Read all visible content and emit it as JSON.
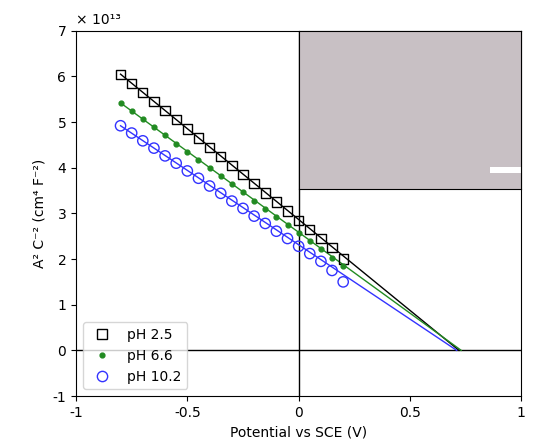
{
  "chart_data": {
    "type": "scatter",
    "x_label": "Potential vs SCE (V)",
    "y_label": "A² C⁻² (cm⁴ F⁻²)",
    "annotations": [
      "× 10¹³"
    ],
    "xlim": [
      -1,
      1
    ],
    "ylim": [
      -1,
      7
    ],
    "xticks": [
      -1,
      -0.5,
      0,
      0.5,
      1
    ],
    "yticks": [
      -1,
      0,
      1,
      2,
      3,
      4,
      5,
      6,
      7
    ],
    "grid": false,
    "legend": "lower left",
    "series": [
      {
        "name": "pH 2.5",
        "type": "scatter",
        "color": "#000000",
        "marker": "open_square",
        "x": [
          -0.8,
          -0.75,
          -0.7,
          -0.65,
          -0.6,
          -0.55,
          -0.5,
          -0.45,
          -0.4,
          -0.35,
          -0.3,
          -0.25,
          -0.2,
          -0.15,
          -0.1,
          -0.05,
          0,
          0.05,
          0.1,
          0.15,
          0.2
        ],
        "values": [
          6.05,
          5.85,
          5.65,
          5.45,
          5.25,
          5.05,
          4.85,
          4.65,
          4.45,
          4.25,
          4.05,
          3.85,
          3.65,
          3.45,
          3.25,
          3.05,
          2.85,
          2.65,
          2.45,
          2.25,
          2.0
        ]
      },
      {
        "name": "pH 6.6",
        "type": "scatter",
        "color": "#228b22",
        "marker": "dot",
        "x": [
          -0.8,
          -0.75,
          -0.7,
          -0.65,
          -0.6,
          -0.55,
          -0.5,
          -0.45,
          -0.4,
          -0.35,
          -0.3,
          -0.25,
          -0.2,
          -0.15,
          -0.1,
          -0.05,
          0,
          0.05,
          0.1,
          0.15,
          0.2
        ],
        "values": [
          5.42,
          5.24,
          5.06,
          4.89,
          4.71,
          4.53,
          4.35,
          4.17,
          3.99,
          3.82,
          3.64,
          3.46,
          3.28,
          3.1,
          2.92,
          2.75,
          2.57,
          2.39,
          2.21,
          2.03,
          1.85
        ]
      },
      {
        "name": "pH 10.2",
        "type": "scatter",
        "color": "#3333ff",
        "marker": "open_circle",
        "x": [
          -0.8,
          -0.75,
          -0.7,
          -0.65,
          -0.6,
          -0.55,
          -0.5,
          -0.45,
          -0.4,
          -0.35,
          -0.3,
          -0.25,
          -0.2,
          -0.15,
          -0.1,
          -0.05,
          0,
          0.05,
          0.1,
          0.15,
          0.2
        ],
        "values": [
          4.92,
          4.76,
          4.59,
          4.43,
          4.26,
          4.1,
          3.93,
          3.77,
          3.6,
          3.44,
          3.27,
          3.11,
          2.94,
          2.78,
          2.61,
          2.45,
          2.28,
          2.12,
          1.95,
          1.75,
          1.5
        ]
      },
      {
        "type": "line",
        "color": "#000000",
        "line_style": "solid",
        "x": [
          -0.8,
          0.72
        ],
        "values": [
          6.05,
          0
        ]
      },
      {
        "type": "line",
        "color": "#228b22",
        "line_style": "solid",
        "x": [
          -0.8,
          0.73
        ],
        "values": [
          5.42,
          0
        ]
      },
      {
        "type": "line",
        "color": "#3333ff",
        "line_style": "solid",
        "x": [
          -0.8,
          0.71
        ],
        "values": [
          4.92,
          0
        ]
      }
    ]
  }
}
